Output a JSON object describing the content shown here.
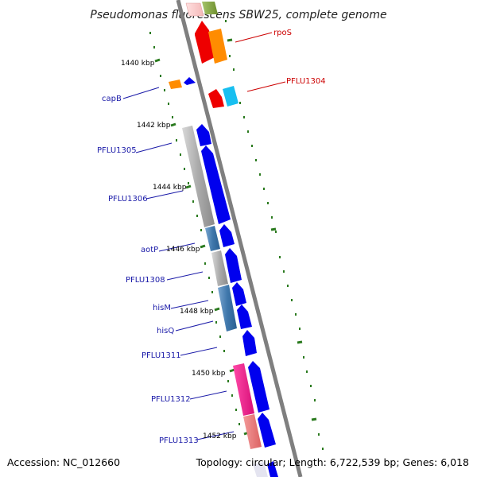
{
  "title": "Pseudomonas fluorescens SBW25, complete genome",
  "footer": {
    "accession": "Accession: NC_012660",
    "summary": "Topology: circular; Length: 6,722,539 bp; Genes: 6,018"
  },
  "colors": {
    "backbone": "#7f7f7f",
    "tick": "#2a7a1e",
    "label_blue": "#1a1aa8",
    "label_red": "#cc0000",
    "cds_blue": "#0000ee",
    "cds_red": "#ee0000",
    "cds_orange": "#ff8c00",
    "cds_cyan": "#18bff0",
    "gray_block": "#b8b8b8",
    "steel_block": "#4f86b8",
    "magenta_block": "#ee1188",
    "salmon_block": "#ec7878"
  },
  "tick_labels": [
    "1440 kbp",
    "1442 kbp",
    "1444 kbp",
    "1446 kbp",
    "1448 kbp",
    "1450 kbp",
    "1452 kbp"
  ],
  "gene_labels_left": [
    "capB",
    "PFLU1305",
    "PFLU1306",
    "aotP",
    "PFLU1308",
    "hisM",
    "hisQ",
    "PFLU1311",
    "PFLU1312",
    "PFLU1313"
  ],
  "gene_labels_right": [
    "rpoS",
    "PFLU1304"
  ]
}
